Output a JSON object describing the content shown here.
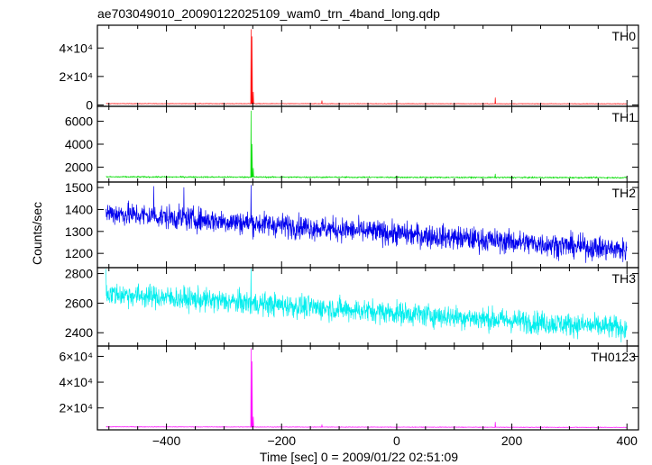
{
  "chart_data": {
    "type": "line",
    "title": "ae703049010_20090122025109_wam0_trn_4band_long.qdp",
    "xlabel": "Time [sec] 0 = 2009/01/22 02:51:09",
    "ylabel": "Counts/sec",
    "xlim": [
      -520,
      420
    ],
    "x_ticks": [
      {
        "value": -400,
        "label": "−400"
      },
      {
        "value": -200,
        "label": "−200"
      },
      {
        "value": 0,
        "label": "0"
      },
      {
        "value": 200,
        "label": "200"
      },
      {
        "value": 400,
        "label": "400"
      }
    ],
    "x_minor_step": 50,
    "data_range": [
      -505,
      400
    ],
    "panels": [
      {
        "name": "TH0",
        "color": "#ff0000",
        "ylim": [
          -1000,
          56000
        ],
        "y_ticks": [
          {
            "value": 0,
            "label": "0"
          },
          {
            "value": 20000,
            "label": "2×10⁴"
          },
          {
            "value": 40000,
            "label": "4×10⁴"
          }
        ],
        "baseline": {
          "start": 900,
          "end": 800,
          "noise": 120
        },
        "spikes": [
          {
            "x": -253,
            "y": 53000
          },
          {
            "x": -251,
            "y": 48000
          },
          {
            "x": -249,
            "y": 9000
          },
          {
            "x": -130,
            "y": 3000
          },
          {
            "x": 171,
            "y": 5000
          }
        ]
      },
      {
        "name": "TH1",
        "color": "#00dd00",
        "ylim": [
          700,
          7300
        ],
        "y_ticks": [
          {
            "value": 2000,
            "label": "2000"
          },
          {
            "value": 4000,
            "label": "4000"
          },
          {
            "value": 6000,
            "label": "6000"
          }
        ],
        "baseline": {
          "start": 1150,
          "end": 1080,
          "noise": 45
        },
        "spikes": [
          {
            "x": -253,
            "y": 6900
          },
          {
            "x": -251,
            "y": 4000
          },
          {
            "x": -249,
            "y": 1900
          },
          {
            "x": 171,
            "y": 1400
          }
        ]
      },
      {
        "name": "TH2",
        "color": "#0000ee",
        "ylim": [
          1135,
          1525
        ],
        "y_ticks": [
          {
            "value": 1200,
            "label": "1200"
          },
          {
            "value": 1300,
            "label": "1300"
          },
          {
            "value": 1400,
            "label": "1400"
          },
          {
            "value": 1500,
            "label": "1500"
          }
        ],
        "baseline": {
          "start": 1385,
          "end": 1215,
          "noise": 38
        },
        "spikes": [
          {
            "x": -253,
            "y": 1510
          },
          {
            "x": -422,
            "y": 1505
          },
          {
            "x": -370,
            "y": 1500
          }
        ]
      },
      {
        "name": "TH3",
        "color": "#00eeee",
        "ylim": [
          2310,
          2840
        ],
        "y_ticks": [
          {
            "value": 2400,
            "label": "2400"
          },
          {
            "value": 2600,
            "label": "2600"
          },
          {
            "value": 2800,
            "label": "2800"
          }
        ],
        "baseline": {
          "start": 2665,
          "end": 2430,
          "noise": 55
        },
        "spikes": [
          {
            "x": -253,
            "y": 2830
          },
          {
            "x": -505,
            "y": 2830
          }
        ]
      },
      {
        "name": "TH0123",
        "color": "#ff00ff",
        "ylim": [
          3000,
          68000
        ],
        "y_ticks": [
          {
            "value": 20000,
            "label": "2×10⁴"
          },
          {
            "value": 40000,
            "label": "4×10⁴"
          },
          {
            "value": 60000,
            "label": "6×10⁴"
          }
        ],
        "baseline": {
          "start": 5300,
          "end": 4900,
          "noise": 150
        },
        "spikes": [
          {
            "x": -253,
            "y": 66000
          },
          {
            "x": -251,
            "y": 56000
          },
          {
            "x": -249,
            "y": 13000
          },
          {
            "x": -130,
            "y": 7000
          },
          {
            "x": 171,
            "y": 9000
          }
        ]
      }
    ]
  }
}
